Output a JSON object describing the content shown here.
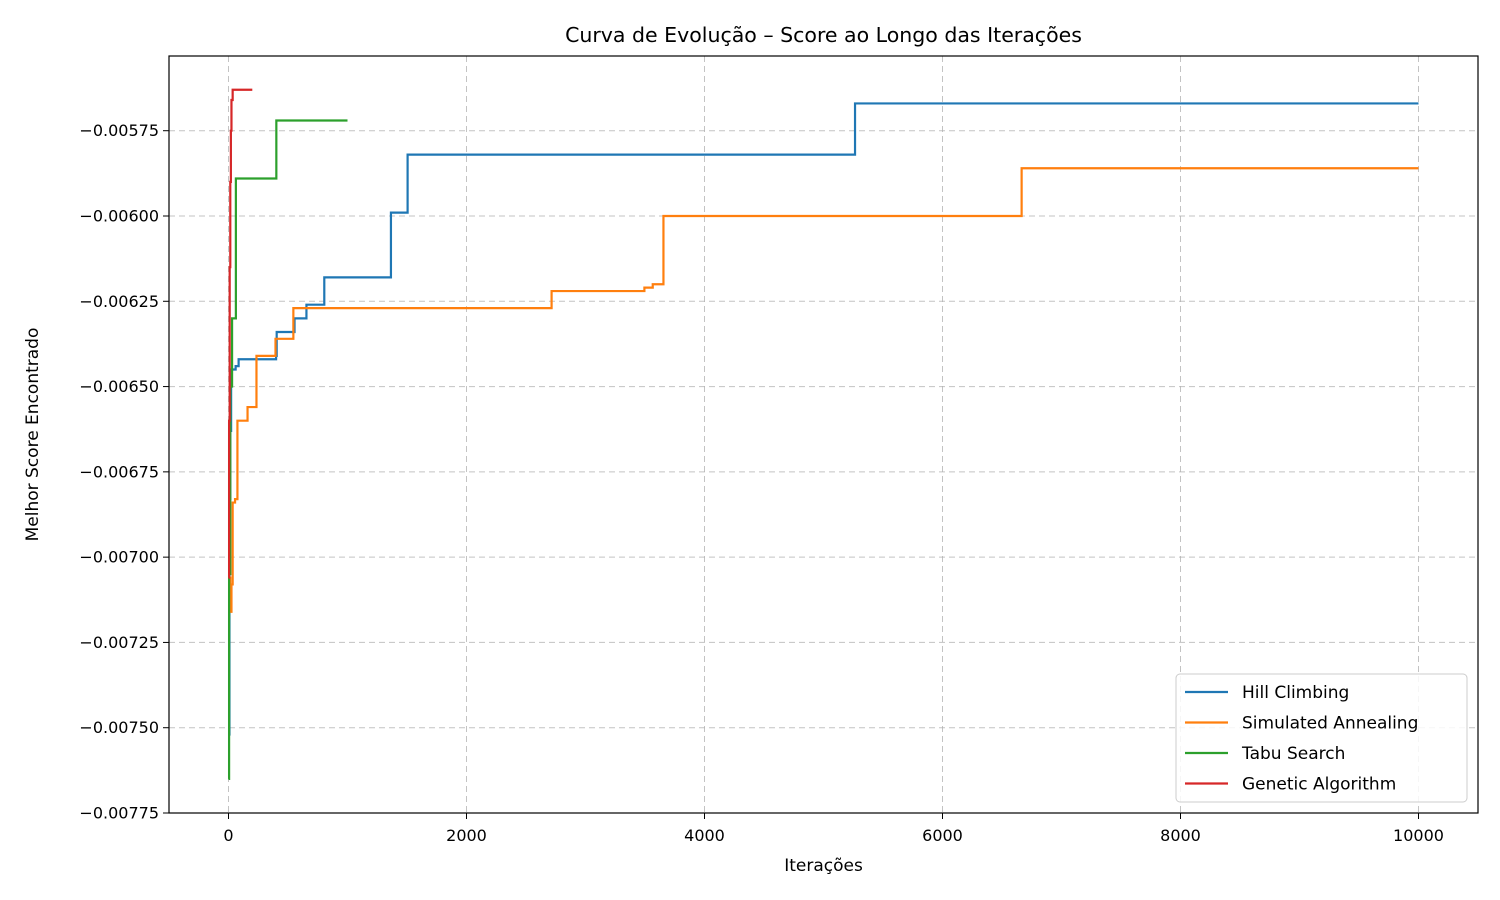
{
  "chart_data": {
    "type": "line",
    "step": true,
    "title": "Curva de Evolução – Score ao Longo das Iterações",
    "xlabel": "Iterações",
    "ylabel": "Melhor Score Encontrado",
    "xlim": [
      -500,
      10500
    ],
    "ylim": [
      -0.00775,
      -0.005531
    ],
    "xticks": [
      0,
      2000,
      4000,
      6000,
      8000,
      10000
    ],
    "xtick_labels": [
      "0",
      "2000",
      "4000",
      "6000",
      "8000",
      "10000"
    ],
    "yticks": [
      -0.00775,
      -0.0075,
      -0.00725,
      -0.007,
      -0.00675,
      -0.0065,
      -0.00625,
      -0.006,
      -0.00575
    ],
    "ytick_labels": [
      "−0.00775",
      "−0.00750",
      "−0.00725",
      "−0.00700",
      "−0.00675",
      "−0.00650",
      "−0.00625",
      "−0.00600",
      "−0.00575"
    ],
    "grid": true,
    "legend_position": "lower-right",
    "series": [
      {
        "name": "Hill Climbing",
        "color": "#1f77b4",
        "points": [
          [
            0,
            -0.00752
          ],
          [
            8,
            -0.00683
          ],
          [
            15,
            -0.00663
          ],
          [
            22,
            -0.00645
          ],
          [
            60,
            -0.00644
          ],
          [
            85,
            -0.00642
          ],
          [
            400,
            -0.00641
          ],
          [
            405,
            -0.00634
          ],
          [
            550,
            -0.00634
          ],
          [
            555,
            -0.0063
          ],
          [
            650,
            -0.0063
          ],
          [
            655,
            -0.00626
          ],
          [
            800,
            -0.00626
          ],
          [
            805,
            -0.00618
          ],
          [
            1360,
            -0.00618
          ],
          [
            1365,
            -0.00599
          ],
          [
            1500,
            -0.00599
          ],
          [
            1505,
            -0.00582
          ],
          [
            5260,
            -0.00582
          ],
          [
            5265,
            -0.00567
          ],
          [
            10000,
            -0.00567
          ]
        ]
      },
      {
        "name": "Simulated Annealing",
        "color": "#ff7f0e",
        "points": [
          [
            0,
            -0.00706
          ],
          [
            15,
            -0.00716
          ],
          [
            25,
            -0.00708
          ],
          [
            35,
            -0.00684
          ],
          [
            55,
            -0.00683
          ],
          [
            75,
            -0.0066
          ],
          [
            150,
            -0.0066
          ],
          [
            160,
            -0.00656
          ],
          [
            230,
            -0.00656
          ],
          [
            235,
            -0.00641
          ],
          [
            390,
            -0.00641
          ],
          [
            395,
            -0.00636
          ],
          [
            540,
            -0.00636
          ],
          [
            545,
            -0.00627
          ],
          [
            2710,
            -0.00627
          ],
          [
            2715,
            -0.00622
          ],
          [
            3490,
            -0.00622
          ],
          [
            3495,
            -0.00621
          ],
          [
            3560,
            -0.00621
          ],
          [
            3565,
            -0.0062
          ],
          [
            3650,
            -0.0062
          ],
          [
            3655,
            -0.006
          ],
          [
            6660,
            -0.006
          ],
          [
            6665,
            -0.00586
          ],
          [
            10000,
            -0.00586
          ]
        ]
      },
      {
        "name": "Tabu Search",
        "color": "#2ca02c",
        "points": [
          [
            0,
            -0.00765
          ],
          [
            5,
            -0.00705
          ],
          [
            15,
            -0.0065
          ],
          [
            30,
            -0.0063
          ],
          [
            60,
            -0.0063
          ],
          [
            62,
            -0.00589
          ],
          [
            400,
            -0.00589
          ],
          [
            402,
            -0.00572
          ],
          [
            1000,
            -0.00572
          ]
        ]
      },
      {
        "name": "Genetic Algorithm",
        "color": "#d62728",
        "points": [
          [
            0,
            -0.00706
          ],
          [
            5,
            -0.0066
          ],
          [
            10,
            -0.00615
          ],
          [
            15,
            -0.0059
          ],
          [
            20,
            -0.00575
          ],
          [
            25,
            -0.00566
          ],
          [
            35,
            -0.00563
          ],
          [
            200,
            -0.00563
          ]
        ]
      }
    ]
  }
}
